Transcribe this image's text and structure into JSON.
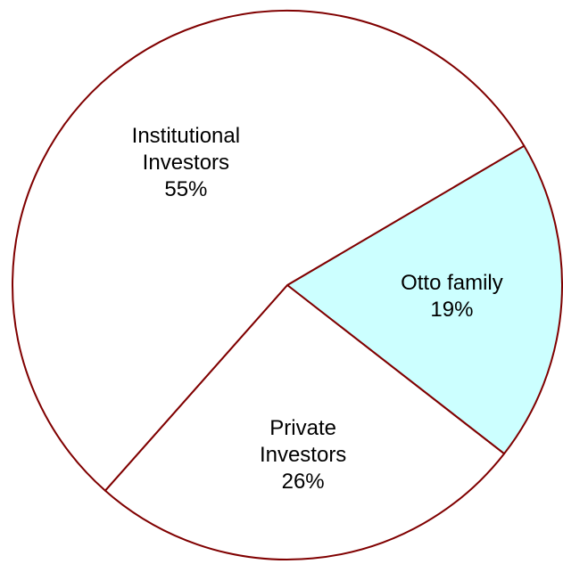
{
  "chart_data": {
    "type": "pie",
    "title": "",
    "slices": [
      {
        "label_lines": [
          "Otto family",
          "19%"
        ],
        "category": "Otto family",
        "value": 19,
        "fill": "#ccffff"
      },
      {
        "label_lines": [
          "Private",
          "Investors",
          "26%"
        ],
        "category": "Private Investors",
        "value": 26,
        "fill": "#ffffff"
      },
      {
        "label_lines": [
          "Institutional",
          "Investors",
          "55%"
        ],
        "category": "Institutional Investors",
        "value": 55,
        "fill": "#ffffff"
      }
    ],
    "stroke_color": "#800000",
    "legend": "none"
  }
}
